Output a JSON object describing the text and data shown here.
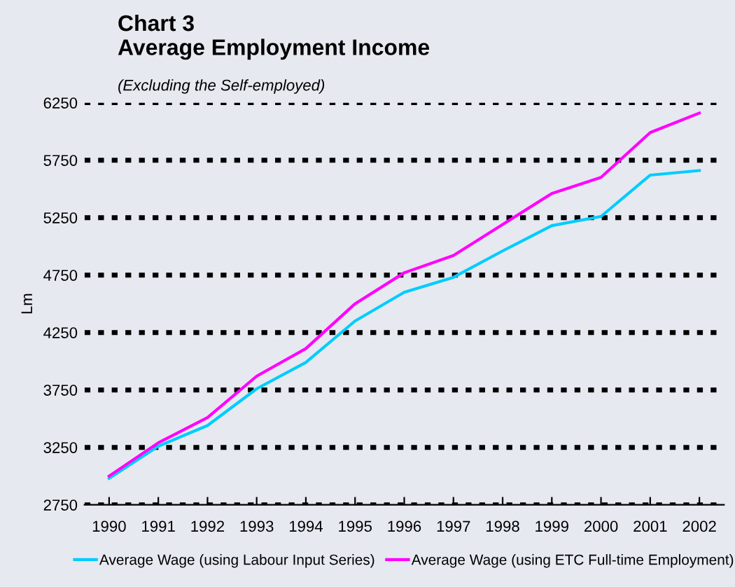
{
  "chart_data": {
    "type": "line",
    "title": "Chart 3\nAverage Employment Income",
    "subtitle": "(Excluding the Self-employed)",
    "ylabel": "Lm",
    "categories": [
      "1990",
      "1991",
      "1992",
      "1993",
      "1994",
      "1995",
      "1996",
      "1997",
      "1998",
      "1999",
      "2000",
      "2001",
      "2002"
    ],
    "series": [
      {
        "name": "Average Wage (using Labour Input Series)",
        "color": "#00ccff",
        "values": [
          2980,
          3260,
          3440,
          3760,
          3990,
          4350,
          4600,
          4730,
          4960,
          5180,
          5260,
          5620,
          5660
        ]
      },
      {
        "name": "Average Wage (using ETC Full-time Employment)",
        "color": "#ff00ff",
        "values": [
          3000,
          3290,
          3510,
          3870,
          4110,
          4500,
          4770,
          4920,
          5190,
          5460,
          5600,
          5990,
          6160
        ]
      }
    ],
    "ylim": [
      2750,
      6250
    ],
    "yticks": [
      2750,
      3250,
      3750,
      4250,
      4750,
      5250,
      5750,
      6250
    ],
    "grid": "y",
    "legend": "bottom",
    "marker": "none",
    "line_style": "solid"
  }
}
